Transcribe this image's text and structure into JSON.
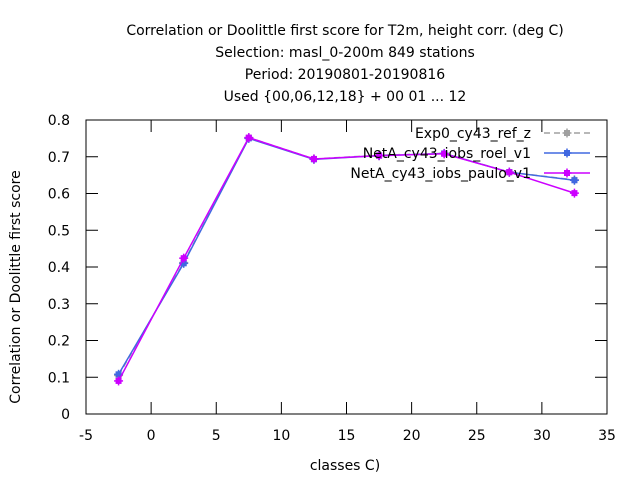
{
  "chart_data": {
    "type": "line",
    "title_lines": [
      "Correlation or Doolittle first score  for T2m, height corr. (deg C)",
      "Selection: masl_0-200m    849 stations",
      "Period: 20190801-20190816",
      "Used {00,06,12,18} + 00 01 ... 12"
    ],
    "xlabel": "classes C)",
    "ylabel": "Correlation or Doolittle first score",
    "xlim": [
      -5,
      35
    ],
    "ylim": [
      0,
      0.8
    ],
    "x_ticks": [
      -5,
      0,
      5,
      10,
      15,
      20,
      25,
      30,
      35
    ],
    "y_ticks": [
      0,
      0.1,
      0.2,
      0.3,
      0.4,
      0.5,
      0.6,
      0.7,
      0.8
    ],
    "x_tick_labels": [
      "-5",
      "0",
      "5",
      "10",
      "15",
      "20",
      "25",
      "30",
      "35"
    ],
    "y_tick_labels": [
      "0",
      "0.1",
      "0.2",
      "0.3",
      "0.4",
      "0.5",
      "0.6",
      "0.7",
      "0.8"
    ],
    "grid": false,
    "legend_position": "top-right",
    "x": [
      -2.5,
      2.5,
      7.5,
      12.5,
      17.5,
      22.5,
      27.5,
      32.5
    ],
    "series": [
      {
        "name": "Exp0_cy43_ref_z",
        "color": "#a0a0a0",
        "dashed": true,
        "values": [
          0.105,
          0.412,
          0.752,
          0.694,
          0.704,
          0.709,
          0.658,
          0.637
        ]
      },
      {
        "name": "NetA_cy43_iobs_roel_v1",
        "color": "#4169e1",
        "dashed": false,
        "values": [
          0.108,
          0.41,
          0.75,
          0.693,
          0.703,
          0.709,
          0.658,
          0.636
        ]
      },
      {
        "name": "NetA_cy43_iobs_paulo_v1",
        "color": "#cc00ff",
        "dashed": false,
        "values": [
          0.09,
          0.424,
          0.752,
          0.694,
          0.703,
          0.708,
          0.658,
          0.601
        ]
      }
    ]
  }
}
